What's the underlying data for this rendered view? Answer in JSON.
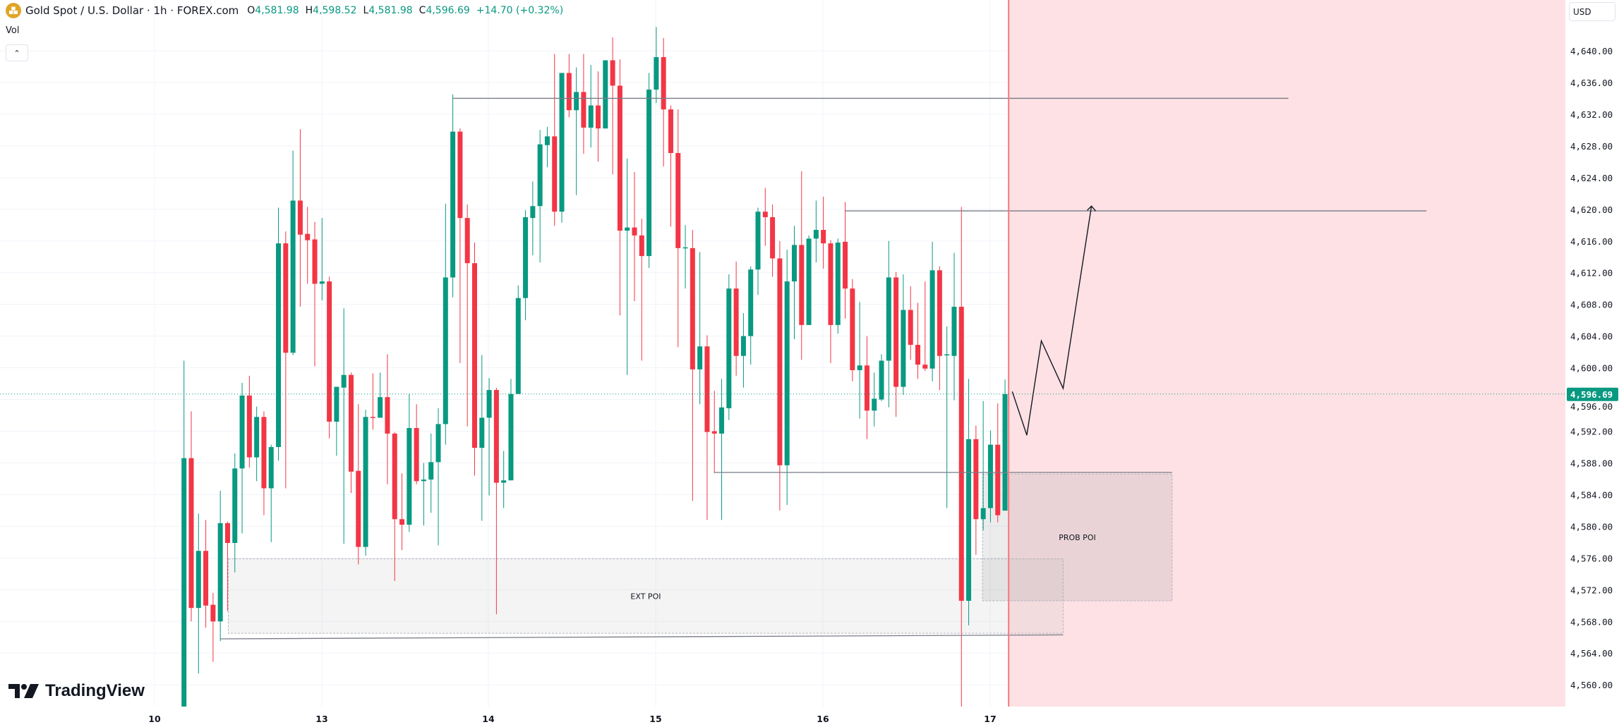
{
  "header": {
    "symbol_icon": "gold-bars-icon",
    "title": "Gold Spot / U.S. Dollar · 1h · FOREX.com",
    "open_key": "O",
    "open": "4,581.98",
    "high_key": "H",
    "high": "4,598.52",
    "low_key": "L",
    "low": "4,581.98",
    "close_key": "C",
    "close": "4,596.69",
    "change": "+14.70 (+0.32%)"
  },
  "indicator": {
    "label": "Vol",
    "collapse_icon": "chevron-up-icon"
  },
  "price_axis": {
    "currency": "USD",
    "ticks": [
      "4,640.00",
      "4,636.00",
      "4,632.00",
      "4,628.00",
      "4,624.00",
      "4,620.00",
      "4,616.00",
      "4,612.00",
      "4,608.00",
      "4,604.00",
      "4,600.00",
      "4,596.00",
      "4,592.00",
      "4,588.00",
      "4,584.00",
      "4,580.00",
      "4,576.00",
      "4,572.00",
      "4,568.00",
      "4,564.00",
      "4,560.00"
    ],
    "last_price_label": "4,596.69"
  },
  "time_axis": {
    "labels": [
      "10",
      "13",
      "14",
      "15",
      "16",
      "17"
    ]
  },
  "logo": {
    "text": "TradingView"
  },
  "colors": {
    "up": "#089981",
    "down": "#F23645",
    "future_zone": "#fde1e4",
    "future_line": "#f7787e",
    "grid": "#f0f3fa"
  },
  "chart_data": {
    "type": "candlestick",
    "interval": "1h",
    "ylim": [
      4557.3,
      4646.4
    ],
    "last_price": 4596.69,
    "candles": [
      [
        4556,
        4600.9,
        4552,
        4588.6
      ],
      [
        4588.6,
        4594.5,
        4568,
        4569.7
      ],
      [
        4569.7,
        4581.6,
        4561.4,
        4576.9
      ],
      [
        4576.9,
        4580.8,
        4567.2,
        4570.0
      ],
      [
        4570.1,
        4571.6,
        4562.9,
        4568.0
      ],
      [
        4568.0,
        4584.5,
        4565.5,
        4580.4
      ],
      [
        4580.4,
        4580.6,
        4569.3,
        4577.9
      ],
      [
        4577.9,
        4589.2,
        4574.2,
        4587.3
      ],
      [
        4587.3,
        4598.1,
        4579.1,
        4596.5
      ],
      [
        4596.5,
        4599.0,
        4587.4,
        4588.7
      ],
      [
        4588.7,
        4595.1,
        4585.7,
        4593.8
      ],
      [
        4593.8,
        4594.5,
        4581.4,
        4584.8
      ],
      [
        4584.8,
        4590.3,
        4578.0,
        4590.0
      ],
      [
        4590.0,
        4620.2,
        4588.3,
        4615.7
      ],
      [
        4615.7,
        4617.2,
        4584.8,
        4601.9
      ],
      [
        4601.9,
        4627.4,
        4601.6,
        4621.1
      ],
      [
        4621.1,
        4630.1,
        4607.7,
        4616.8
      ],
      [
        4616.9,
        4620.3,
        4610.6,
        4616.1
      ],
      [
        4616.2,
        4618.4,
        4600.2,
        4610.6
      ],
      [
        4610.6,
        4618.9,
        4608.5,
        4610.9
      ],
      [
        4610.9,
        4611.5,
        4591.1,
        4593.2
      ],
      [
        4593.2,
        4597.6,
        4588.9,
        4597.6
      ],
      [
        4597.5,
        4607.5,
        4577.8,
        4599.1
      ],
      [
        4599.1,
        4599.4,
        4584.2,
        4586.9
      ],
      [
        4587.0,
        4595.4,
        4575.2,
        4577.4
      ],
      [
        4577.4,
        4594.7,
        4576.3,
        4593.8
      ],
      [
        4593.8,
        4599.3,
        4592.2,
        4593.7
      ],
      [
        4593.7,
        4599.4,
        4593.7,
        4596.3
      ],
      [
        4596.3,
        4601.7,
        4585.3,
        4591.7
      ],
      [
        4591.7,
        4591.9,
        4573.1,
        4580.9
      ],
      [
        4580.9,
        4586.7,
        4577.0,
        4580.2
      ],
      [
        4580.2,
        4596.7,
        4579.3,
        4592.4
      ],
      [
        4592.4,
        4595.4,
        4585.3,
        4585.7
      ],
      [
        4585.7,
        4588.0,
        4580.1,
        4585.9
      ],
      [
        4585.9,
        4591.7,
        4581.7,
        4588.1
      ],
      [
        4588.1,
        4594.9,
        4577.6,
        4592.9
      ],
      [
        4592.9,
        4620.7,
        4590.3,
        4611.4
      ],
      [
        4611.4,
        4634.5,
        4608.9,
        4629.8
      ],
      [
        4629.8,
        4630.2,
        4600.6,
        4618.9
      ],
      [
        4618.9,
        4620.6,
        4592.6,
        4613.2
      ],
      [
        4613.2,
        4615.8,
        4586.4,
        4589.9
      ],
      [
        4589.9,
        4601.6,
        4580.7,
        4593.7
      ],
      [
        4593.7,
        4598.7,
        4583.9,
        4597.2
      ],
      [
        4597.2,
        4597.5,
        4568.9,
        4585.5
      ],
      [
        4585.5,
        4589.5,
        4582.3,
        4585.8
      ],
      [
        4585.8,
        4598.6,
        4585.8,
        4596.7
      ],
      [
        4596.7,
        4610.4,
        4596.7,
        4608.8
      ],
      [
        4608.8,
        4619.9,
        4606.0,
        4619.0
      ],
      [
        4618.9,
        4623.5,
        4614.2,
        4620.4
      ],
      [
        4620.4,
        4630.0,
        4613.3,
        4628.2
      ],
      [
        4628.1,
        4630.4,
        4625.3,
        4629.2
      ],
      [
        4629.2,
        4639.6,
        4617.9,
        4619.7
      ],
      [
        4619.7,
        4637.2,
        4618.3,
        4637.2
      ],
      [
        4637.2,
        4639.6,
        4631.6,
        4632.5
      ],
      [
        4632.5,
        4637.9,
        4621.8,
        4634.8
      ],
      [
        4634.8,
        4639.6,
        4627.0,
        4630.3
      ],
      [
        4630.3,
        4638.2,
        4627.8,
        4633.1
      ],
      [
        4633.1,
        4637.4,
        4626.0,
        4630.2
      ],
      [
        4630.2,
        4638.8,
        4630.2,
        4638.8
      ],
      [
        4638.8,
        4641.7,
        4624.4,
        4635.6
      ],
      [
        4635.6,
        4638.9,
        4606.6,
        4617.3
      ],
      [
        4617.3,
        4626.4,
        4599.1,
        4617.7
      ],
      [
        4617.7,
        4624.7,
        4608.4,
        4616.7
      ],
      [
        4616.7,
        4618.8,
        4600.9,
        4614.1
      ],
      [
        4614.1,
        4637.2,
        4612.6,
        4635.1
      ],
      [
        4635.1,
        4643.0,
        4633.4,
        4639.2
      ],
      [
        4639.2,
        4641.6,
        4625.4,
        4632.6
      ],
      [
        4632.6,
        4633.1,
        4617.8,
        4627.1
      ],
      [
        4627.1,
        4632.6,
        4602.6,
        4615.1
      ],
      [
        4615.1,
        4618.0,
        4610.0,
        4615.2
      ],
      [
        4615.1,
        4617.4,
        4583.2,
        4599.8
      ],
      [
        4599.8,
        4614.6,
        4595.4,
        4602.7
      ],
      [
        4602.7,
        4604.1,
        4580.8,
        4591.9
      ],
      [
        4592.0,
        4597.1,
        4586.7,
        4591.7
      ],
      [
        4591.7,
        4598.6,
        4580.8,
        4595.0
      ],
      [
        4594.9,
        4611.8,
        4593.4,
        4610.0
      ],
      [
        4610.0,
        4613.4,
        4599.0,
        4601.5
      ],
      [
        4601.5,
        4606.9,
        4597.5,
        4604.0
      ],
      [
        4604.0,
        4612.8,
        4600.4,
        4612.4
      ],
      [
        4612.4,
        4620.2,
        4609.2,
        4619.7
      ],
      [
        4619.7,
        4622.7,
        4615.4,
        4619.0
      ],
      [
        4619.0,
        4620.6,
        4611.5,
        4613.8
      ],
      [
        4613.8,
        4616.0,
        4582.0,
        4587.7
      ],
      [
        4587.7,
        4614.9,
        4582.7,
        4610.9
      ],
      [
        4610.9,
        4617.9,
        4603.6,
        4615.5
      ],
      [
        4615.5,
        4624.8,
        4601.0,
        4605.4
      ],
      [
        4605.4,
        4616.7,
        4605.4,
        4616.3
      ],
      [
        4616.3,
        4621.1,
        4613.3,
        4617.4
      ],
      [
        4617.4,
        4621.6,
        4612.5,
        4615.7
      ],
      [
        4615.7,
        4616.1,
        4600.6,
        4605.4
      ],
      [
        4605.4,
        4616.3,
        4604.3,
        4615.8
      ],
      [
        4615.9,
        4620.9,
        4606.2,
        4610.0
      ],
      [
        4610.0,
        4611.2,
        4598.3,
        4599.7
      ],
      [
        4599.7,
        4608.3,
        4593.6,
        4600.3
      ],
      [
        4600.3,
        4604.0,
        4591.0,
        4594.6
      ],
      [
        4594.6,
        4599.4,
        4592.6,
        4596.1
      ],
      [
        4596.0,
        4601.7,
        4595.8,
        4600.9
      ],
      [
        4600.9,
        4616.0,
        4595.0,
        4611.4
      ],
      [
        4611.4,
        4612.1,
        4593.8,
        4597.6
      ],
      [
        4597.6,
        4611.8,
        4596.6,
        4607.3
      ],
      [
        4607.3,
        4610.3,
        4601.0,
        4602.9
      ],
      [
        4602.9,
        4608.2,
        4598.6,
        4600.4
      ],
      [
        4600.4,
        4610.9,
        4599.6,
        4599.9
      ],
      [
        4599.9,
        4615.9,
        4598.3,
        4612.3
      ],
      [
        4612.3,
        4612.8,
        4597.2,
        4601.5
      ],
      [
        4601.6,
        4605.2,
        4582.3,
        4601.7
      ],
      [
        4601.5,
        4614.5,
        4595.9,
        4607.7
      ],
      [
        4607.7,
        4620.3,
        4556,
        4570.6
      ],
      [
        4570.6,
        4598.6,
        4567.5,
        4591.0
      ],
      [
        4591.0,
        4592.7,
        4576.4,
        4580.9
      ],
      [
        4580.9,
        4595.8,
        4579.5,
        4582.3
      ],
      [
        4582.3,
        4592.1,
        4580.5,
        4590.3
      ],
      [
        4590.3,
        4595.5,
        4580.5,
        4581.4
      ],
      [
        4581.98,
        4598.52,
        4581.98,
        4596.69
      ]
    ],
    "drawings": {
      "horizontal_lines": [
        {
          "from_bar": 38,
          "to_bar": 153,
          "price_start": 4634.0,
          "price_end": 4634.0
        },
        {
          "from_bar": 92,
          "to_bar": 172,
          "price_start": 4619.8,
          "price_end": 4619.8
        },
        {
          "from_bar": 74,
          "to_bar": 137,
          "price_start": 4586.8,
          "price_end": 4586.8
        },
        {
          "from_bar": 6,
          "to_bar": 122,
          "price_start": 4565.8,
          "price_end": 4566.3
        }
      ],
      "zones": [
        {
          "label": "EXT POI",
          "from_bar": 7.1,
          "to_bar": 122,
          "price_low": 4566.5,
          "price_high": 4575.9
        },
        {
          "label": "PROB POI",
          "from_bar": 110.9,
          "to_bar": 137,
          "price_low": 4570.6,
          "price_high": 4586.6
        }
      ],
      "future_marker_bar": 114.5,
      "projection_path": [
        {
          "bar": 115.0,
          "price": 4597.0
        },
        {
          "bar": 117.0,
          "price": 4591.5
        },
        {
          "bar": 119.0,
          "price": 4603.4
        },
        {
          "bar": 122.0,
          "price": 4597.4
        },
        {
          "bar": 125.9,
          "price": 4620.4
        }
      ]
    }
  }
}
